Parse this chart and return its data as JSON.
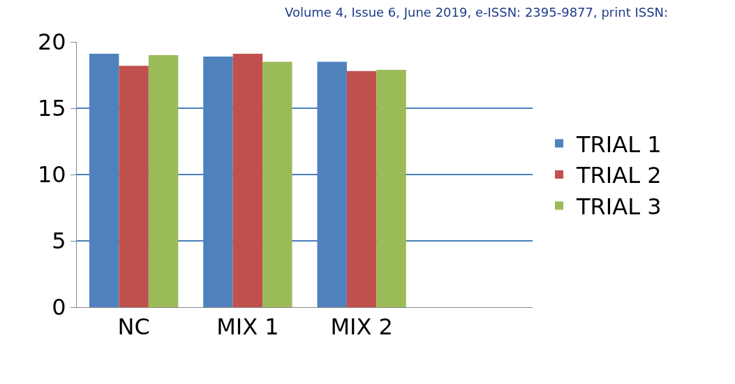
{
  "chart_data": {
    "type": "bar",
    "annotations": [
      "Volume 4, Issue 6, June 2019, e-ISSN: 2395-9877, print ISSN:"
    ],
    "categories": [
      "NC",
      "MIX 1",
      "MIX 2",
      null
    ],
    "series": [
      {
        "name": "TRIAL 1",
        "color": "#4f81bd",
        "values": [
          19.1,
          18.9,
          18.5,
          null
        ]
      },
      {
        "name": "TRIAL 2",
        "color": "#c0504d",
        "values": [
          18.2,
          19.1,
          17.8,
          null
        ]
      },
      {
        "name": "TRIAL 3",
        "color": "#9bbb59",
        "values": [
          19.0,
          18.5,
          17.9,
          null
        ]
      }
    ],
    "ylim": [
      0,
      20
    ],
    "yticks": [
      0,
      5,
      10,
      15,
      20
    ],
    "grid": "y",
    "legend": "right"
  }
}
